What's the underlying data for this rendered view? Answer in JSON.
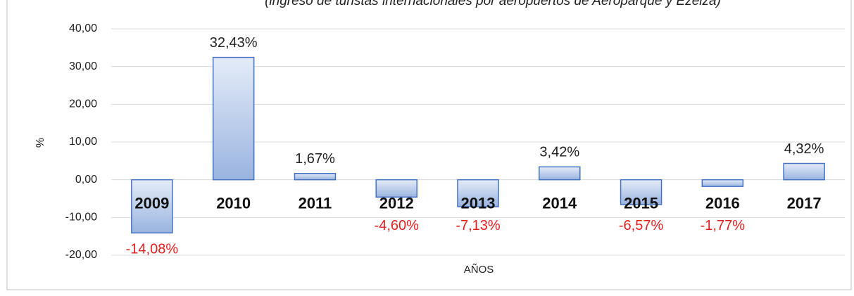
{
  "chart_data": {
    "type": "bar",
    "subtitle": "(ingreso de turistas internacionales por aeropuertos de Aeroparque y Ezeiza)",
    "y_label": "%",
    "x_label": "AÑOS",
    "categories": [
      "2009",
      "2010",
      "2011",
      "2012",
      "2013",
      "2014",
      "2015",
      "2016",
      "2017"
    ],
    "values": [
      -14.08,
      32.43,
      1.67,
      -4.6,
      -7.13,
      3.42,
      -6.57,
      -1.77,
      4.32
    ],
    "value_labels": [
      "-14,08%",
      "32,43%",
      "1,67%",
      "-4,60%",
      "-7,13%",
      "3,42%",
      "-6,57%",
      "-1,77%",
      "4,32%"
    ],
    "color": "#4472c4",
    "label_color": "#222222",
    "negative_label_color": "#e02020",
    "ylim": [
      -20,
      40
    ],
    "yticks": [
      {
        "value": -20,
        "label": "-20,00"
      },
      {
        "value": -10,
        "label": "-10,00"
      },
      {
        "value": 0,
        "label": "0,00"
      },
      {
        "value": 10,
        "label": "10,00"
      },
      {
        "value": 20,
        "label": "20,00"
      },
      {
        "value": 30,
        "label": "30,00"
      },
      {
        "value": 40,
        "label": "40,00"
      }
    ],
    "grid": true
  }
}
